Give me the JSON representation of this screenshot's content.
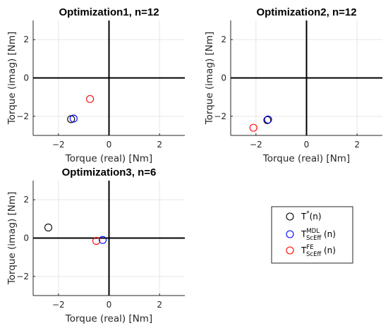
{
  "chart_data": [
    {
      "type": "scatter",
      "title": "Optimization1, n=12",
      "xlabel": "Torque (real) [Nm]",
      "ylabel": "Torque (imag) [Nm]",
      "xlim": [
        -3,
        3
      ],
      "ylim": [
        -3,
        3
      ],
      "xticks": [
        -2,
        0,
        2
      ],
      "yticks": [
        -2,
        0,
        2
      ],
      "grid": true,
      "series": [
        {
          "name": "T*(n)",
          "color": "#000000",
          "points": [
            [
              -1.5,
              -2.15
            ]
          ]
        },
        {
          "name": "T_ScEff^MDL(n)",
          "color": "#0000ff",
          "points": [
            [
              -1.4,
              -2.12
            ]
          ]
        },
        {
          "name": "T_ScEff^FE(n)",
          "color": "#ff0000",
          "points": [
            [
              -0.75,
              -1.1
            ]
          ]
        }
      ]
    },
    {
      "type": "scatter",
      "title": "Optimization2, n=12",
      "xlabel": "Torque (real) [Nm]",
      "ylabel": "Torque (imag) [Nm]",
      "xlim": [
        -3,
        3
      ],
      "ylim": [
        -3,
        3
      ],
      "xticks": [
        -2,
        0,
        2
      ],
      "yticks": [
        -2,
        0,
        2
      ],
      "grid": true,
      "series": [
        {
          "name": "T*(n)",
          "color": "#000000",
          "points": [
            [
              -1.55,
              -2.2
            ]
          ]
        },
        {
          "name": "T_ScEff^MDL(n)",
          "color": "#0000ff",
          "points": [
            [
              -1.52,
              -2.17
            ]
          ]
        },
        {
          "name": "T_ScEff^FE(n)",
          "color": "#ff0000",
          "points": [
            [
              -2.1,
              -2.6
            ]
          ]
        }
      ]
    },
    {
      "type": "scatter",
      "title": "Optimization3, n=6",
      "xlabel": "Torque (real) [Nm]",
      "ylabel": "Torque (imag) [Nm]",
      "xlim": [
        -3,
        3
      ],
      "ylim": [
        -3,
        3
      ],
      "xticks": [
        -2,
        0,
        2
      ],
      "yticks": [
        -2,
        0,
        2
      ],
      "grid": true,
      "series": [
        {
          "name": "T*(n)",
          "color": "#000000",
          "points": [
            [
              -2.4,
              0.55
            ]
          ]
        },
        {
          "name": "T_ScEff^MDL(n)",
          "color": "#0000ff",
          "points": [
            [
              -0.25,
              -0.1
            ]
          ]
        },
        {
          "name": "T_ScEff^FE(n)",
          "color": "#ff0000",
          "points": [
            [
              -0.5,
              -0.15
            ]
          ]
        }
      ]
    }
  ],
  "legend": {
    "location": "bottom-right",
    "entries": [
      {
        "base": "T",
        "sup": "*",
        "sub": "",
        "suffix": "(n)",
        "color": "#000000"
      },
      {
        "base": "T",
        "sup": "MDL",
        "sub": "ScEff",
        "suffix": "(n)",
        "color": "#0000ff"
      },
      {
        "base": "T",
        "sup": "FE",
        "sub": "ScEff",
        "suffix": "(n)",
        "color": "#ff0000"
      }
    ]
  }
}
